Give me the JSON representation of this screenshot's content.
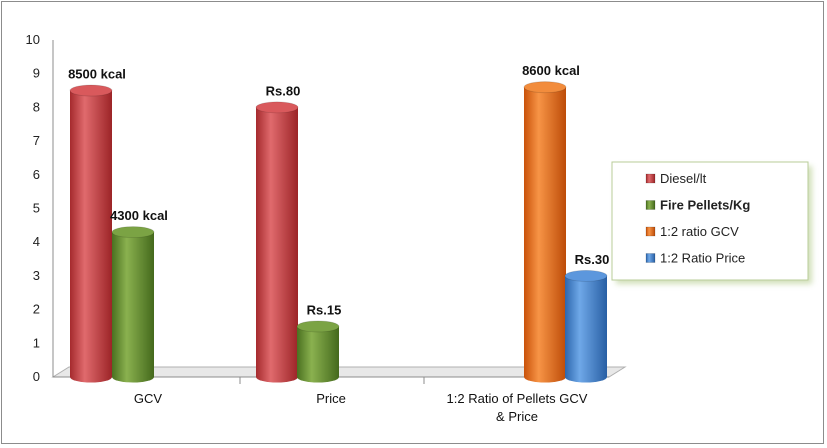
{
  "chart_data": {
    "type": "bar",
    "title": "",
    "xlabel": "",
    "ylabel": "",
    "ylim": [
      0,
      10
    ],
    "yticks": [
      0,
      1,
      2,
      3,
      4,
      5,
      6,
      7,
      8,
      9,
      10
    ],
    "categories": [
      "GCV",
      "Price",
      "1:2 Ratio of Pellets GCV & Price"
    ],
    "grid": false,
    "legend_position": "right",
    "series": [
      {
        "name": "Diesel/lt",
        "color": "#c0393c",
        "values": [
          8.5,
          8.0,
          null
        ],
        "labels": [
          "8500 kcal",
          "Rs.80",
          null
        ]
      },
      {
        "name": "Fire Pellets/Kg",
        "color": "#5e8a2c",
        "values": [
          4.3,
          1.5,
          null
        ],
        "labels": [
          "4300 kcal",
          "Rs.15",
          null
        ]
      },
      {
        "name": "1:2 ratio GCV",
        "color": "#e0640e",
        "values": [
          null,
          null,
          8.6
        ],
        "labels": [
          null,
          null,
          "8600 kcal"
        ]
      },
      {
        "name": "1:2 Ratio Price",
        "color": "#3a7fcf",
        "values": [
          null,
          null,
          3.0
        ],
        "labels": [
          null,
          null,
          "Rs.30"
        ]
      }
    ]
  }
}
